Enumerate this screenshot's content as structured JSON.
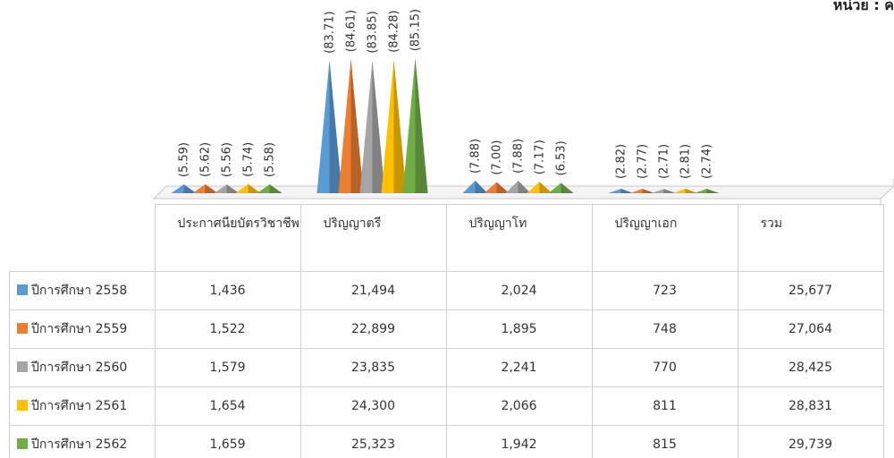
{
  "chart_data": {
    "type": "cone3d",
    "unit_note": "หน่วย : ค",
    "categories": [
      "ประกาศนียบัตรวิชาชีพ",
      "ปริญญาตรี",
      "ปริญญาโท",
      "ปริญญาเอก",
      "รวม"
    ],
    "series": [
      {
        "name": "ปีการศึกษา 2558",
        "color": "#5b9bd5",
        "values": [
          5.59,
          83.71,
          7.88,
          2.82,
          null
        ],
        "value_labels": [
          "(5.59)",
          "(83.71)",
          "(7.88)",
          "(2.82)",
          null
        ],
        "table": [
          "1,436",
          "21,494",
          "2,024",
          "723",
          "25,677"
        ]
      },
      {
        "name": "ปีการศึกษา 2559",
        "color": "#ed7d31",
        "values": [
          5.62,
          84.61,
          7.0,
          2.77,
          null
        ],
        "value_labels": [
          "(5.62)",
          "(84.61)",
          "(7.00)",
          "(2.77)",
          null
        ],
        "table": [
          "1,522",
          "22,899",
          "1,895",
          "748",
          "27,064"
        ]
      },
      {
        "name": "ปีการศึกษา 2560",
        "color": "#a5a5a5",
        "values": [
          5.56,
          83.85,
          7.88,
          2.71,
          null
        ],
        "value_labels": [
          "(5.56)",
          "(83.85)",
          "(7.88)",
          "(2.71)",
          null
        ],
        "table": [
          "1,579",
          "23,835",
          "2,241",
          "770",
          "28,425"
        ]
      },
      {
        "name": "ปีการศึกษา 2561",
        "color": "#ffc000",
        "values": [
          5.74,
          84.28,
          7.17,
          2.81,
          null
        ],
        "value_labels": [
          "(5.74)",
          "(84.28)",
          "(7.17)",
          "(2.81)",
          null
        ],
        "table": [
          "1,654",
          "24,300",
          "2,066",
          "811",
          "28,831"
        ]
      },
      {
        "name": "ปีการศึกษา 2562",
        "color": "#70ad47",
        "values": [
          5.58,
          85.15,
          6.53,
          2.74,
          null
        ],
        "value_labels": [
          "(5.58)",
          "(85.15)",
          "(6.53)",
          "(2.74)",
          null
        ],
        "table": [
          "1,659",
          "25,323",
          "1,942",
          "815",
          "29,739"
        ]
      }
    ]
  }
}
